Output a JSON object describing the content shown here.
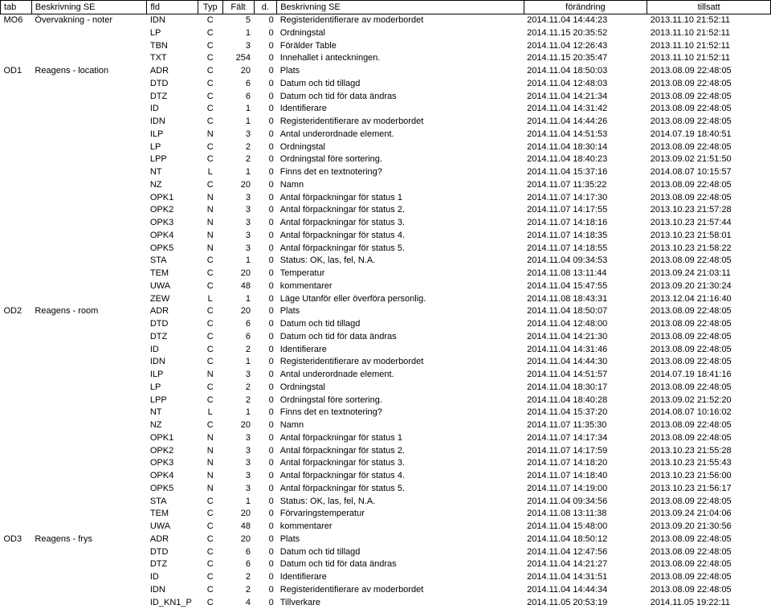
{
  "columns": [
    "tab",
    "Beskrivning SE",
    "fld",
    "Typ",
    "Fält",
    "d.",
    "Beskrivning SE",
    "förändring",
    "tillsatt"
  ],
  "rows": [
    [
      "MO6",
      "Övervakning - noter",
      "IDN",
      "C",
      "5",
      "0",
      "Registeridentifierare av moderbordet",
      "2014.11.04 14:44:23",
      "2013.11.10 21:52:11"
    ],
    [
      "",
      "",
      "LP",
      "C",
      "1",
      "0",
      "Ordningstal",
      "2014.11.15 20:35:52",
      "2013.11.10 21:52:11"
    ],
    [
      "",
      "",
      "TBN",
      "C",
      "3",
      "0",
      "Förälder Table",
      "2014.11.04 12:26:43",
      "2013.11.10 21:52:11"
    ],
    [
      "",
      "",
      "TXT",
      "C",
      "254",
      "0",
      "Innehallet i anteckningen.",
      "2014.11.15 20:35:47",
      "2013.11.10 21:52:11"
    ],
    [
      "OD1",
      "Reagens - location",
      "ADR",
      "C",
      "20",
      "0",
      "Plats",
      "2014.11.04 18:50:03",
      "2013.08.09 22:48:05"
    ],
    [
      "",
      "",
      "DTD",
      "C",
      "6",
      "0",
      "Datum och tid tillagd",
      "2014.11.04 12:48:03",
      "2013.08.09 22:48:05"
    ],
    [
      "",
      "",
      "DTZ",
      "C",
      "6",
      "0",
      "Datum och tid för data ändras",
      "2014.11.04 14:21:34",
      "2013.08.09 22:48:05"
    ],
    [
      "",
      "",
      "ID",
      "C",
      "1",
      "0",
      "Identifierare",
      "2014.11.04 14:31:42",
      "2013.08.09 22:48:05"
    ],
    [
      "",
      "",
      "IDN",
      "C",
      "1",
      "0",
      "Registeridentifierare av moderbordet",
      "2014.11.04 14:44:26",
      "2013.08.09 22:48:05"
    ],
    [
      "",
      "",
      "ILP",
      "N",
      "3",
      "0",
      "Antal underordnade element.",
      "2014.11.04 14:51:53",
      "2014.07.19 18:40:51"
    ],
    [
      "",
      "",
      "LP",
      "C",
      "2",
      "0",
      "Ordningstal",
      "2014.11.04 18:30:14",
      "2013.08.09 22:48:05"
    ],
    [
      "",
      "",
      "LPP",
      "C",
      "2",
      "0",
      "Ordningstal före sortering.",
      "2014.11.04 18:40:23",
      "2013.09.02 21:51:50"
    ],
    [
      "",
      "",
      "NT",
      "L",
      "1",
      "0",
      "Finns det en textnotering?",
      "2014.11.04 15:37:16",
      "2014.08.07 10:15:57"
    ],
    [
      "",
      "",
      "NZ",
      "C",
      "20",
      "0",
      "Namn",
      "2014.11.07 11:35:22",
      "2013.08.09 22:48:05"
    ],
    [
      "",
      "",
      "OPK1",
      "N",
      "3",
      "0",
      "Antal förpackningar för status 1",
      "2014.11.07 14:17:30",
      "2013.08.09 22:48:05"
    ],
    [
      "",
      "",
      "OPK2",
      "N",
      "3",
      "0",
      "Antal förpackningar för status 2.",
      "2014.11.07 14:17:55",
      "2013.10.23 21:57:28"
    ],
    [
      "",
      "",
      "OPK3",
      "N",
      "3",
      "0",
      "Antal förpackningar för status 3.",
      "2014.11.07 14:18:16",
      "2013.10.23 21:57:44"
    ],
    [
      "",
      "",
      "OPK4",
      "N",
      "3",
      "0",
      "Antal förpackningar för status 4.",
      "2014.11.07 14:18:35",
      "2013.10.23 21:58:01"
    ],
    [
      "",
      "",
      "OPK5",
      "N",
      "3",
      "0",
      "Antal förpackningar för status 5.",
      "2014.11.07 14:18:55",
      "2013.10.23 21:58:22"
    ],
    [
      "",
      "",
      "STA",
      "C",
      "1",
      "0",
      "Status: OK, las, fel, N.A.",
      "2014.11.04 09:34:53",
      "2013.08.09 22:48:05"
    ],
    [
      "",
      "",
      "TEM",
      "C",
      "20",
      "0",
      "Temperatur",
      "2014.11.08 13:11:44",
      "2013.09.24 21:03:11"
    ],
    [
      "",
      "",
      "UWA",
      "C",
      "48",
      "0",
      "kommentarer",
      "2014.11.04 15:47:55",
      "2013.09.20 21:30:24"
    ],
    [
      "",
      "",
      "ZEW",
      "L",
      "1",
      "0",
      "Läge Utanför eller överföra personlig.",
      "2014.11.08 18:43:31",
      "2013.12.04 21:16:40"
    ],
    [
      "OD2",
      "Reagens - room",
      "ADR",
      "C",
      "20",
      "0",
      "Plats",
      "2014.11.04 18:50:07",
      "2013.08.09 22:48:05"
    ],
    [
      "",
      "",
      "DTD",
      "C",
      "6",
      "0",
      "Datum och tid tillagd",
      "2014.11.04 12:48:00",
      "2013.08.09 22:48:05"
    ],
    [
      "",
      "",
      "DTZ",
      "C",
      "6",
      "0",
      "Datum och tid för data ändras",
      "2014.11.04 14:21:30",
      "2013.08.09 22:48:05"
    ],
    [
      "",
      "",
      "ID",
      "C",
      "2",
      "0",
      "Identifierare",
      "2014.11.04 14:31:46",
      "2013.08.09 22:48:05"
    ],
    [
      "",
      "",
      "IDN",
      "C",
      "1",
      "0",
      "Registeridentifierare av moderbordet",
      "2014.11.04 14:44:30",
      "2013.08.09 22:48:05"
    ],
    [
      "",
      "",
      "ILP",
      "N",
      "3",
      "0",
      "Antal underordnade element.",
      "2014.11.04 14:51:57",
      "2014.07.19 18:41:16"
    ],
    [
      "",
      "",
      "LP",
      "C",
      "2",
      "0",
      "Ordningstal",
      "2014.11.04 18:30:17",
      "2013.08.09 22:48:05"
    ],
    [
      "",
      "",
      "LPP",
      "C",
      "2",
      "0",
      "Ordningstal före sortering.",
      "2014.11.04 18:40:28",
      "2013.09.02 21:52:20"
    ],
    [
      "",
      "",
      "NT",
      "L",
      "1",
      "0",
      "Finns det en textnotering?",
      "2014.11.04 15:37:20",
      "2014.08.07 10:16:02"
    ],
    [
      "",
      "",
      "NZ",
      "C",
      "20",
      "0",
      "Namn",
      "2014.11.07 11:35:30",
      "2013.08.09 22:48:05"
    ],
    [
      "",
      "",
      "OPK1",
      "N",
      "3",
      "0",
      "Antal förpackningar för status 1",
      "2014.11.07 14:17:34",
      "2013.08.09 22:48:05"
    ],
    [
      "",
      "",
      "OPK2",
      "N",
      "3",
      "0",
      "Antal förpackningar för status 2.",
      "2014.11.07 14:17:59",
      "2013.10.23 21:55:28"
    ],
    [
      "",
      "",
      "OPK3",
      "N",
      "3",
      "0",
      "Antal förpackningar för status 3.",
      "2014.11.07 14:18:20",
      "2013.10.23 21:55:43"
    ],
    [
      "",
      "",
      "OPK4",
      "N",
      "3",
      "0",
      "Antal förpackningar för status 4.",
      "2014.11.07 14:18:40",
      "2013.10.23 21:56:00"
    ],
    [
      "",
      "",
      "OPK5",
      "N",
      "3",
      "0",
      "Antal förpackningar för status 5.",
      "2014.11.07 14:19:00",
      "2013.10.23 21:56:17"
    ],
    [
      "",
      "",
      "STA",
      "C",
      "1",
      "0",
      "Status: OK, las, fel, N.A.",
      "2014.11.04 09:34:56",
      "2013.08.09 22:48:05"
    ],
    [
      "",
      "",
      "TEM",
      "C",
      "20",
      "0",
      "Förvaringstemperatur",
      "2014.11.08 13:11:38",
      "2013.09.24 21:04:06"
    ],
    [
      "",
      "",
      "UWA",
      "C",
      "48",
      "0",
      "kommentarer",
      "2014.11.04 15:48:00",
      "2013.09.20 21:30:56"
    ],
    [
      "OD3",
      "Reagens - frys",
      "ADR",
      "C",
      "20",
      "0",
      "Plats",
      "2014.11.04 18:50:12",
      "2013.08.09 22:48:05"
    ],
    [
      "",
      "",
      "DTD",
      "C",
      "6",
      "0",
      "Datum och tid tillagd",
      "2014.11.04 12:47:56",
      "2013.08.09 22:48:05"
    ],
    [
      "",
      "",
      "DTZ",
      "C",
      "6",
      "0",
      "Datum och tid för data ändras",
      "2014.11.04 14:21:27",
      "2013.08.09 22:48:05"
    ],
    [
      "",
      "",
      "ID",
      "C",
      "2",
      "0",
      "Identifierare",
      "2014.11.04 14:31:51",
      "2013.08.09 22:48:05"
    ],
    [
      "",
      "",
      "IDN",
      "C",
      "2",
      "0",
      "Registeridentifierare av moderbordet",
      "2014.11.04 14:44:34",
      "2013.08.09 22:48:05"
    ],
    [
      "",
      "",
      "ID_KN1_P",
      "C",
      "4",
      "0",
      "Tillverkare",
      "2014.11.05 20:53:19",
      "2014.11.05 19:22:11"
    ]
  ]
}
